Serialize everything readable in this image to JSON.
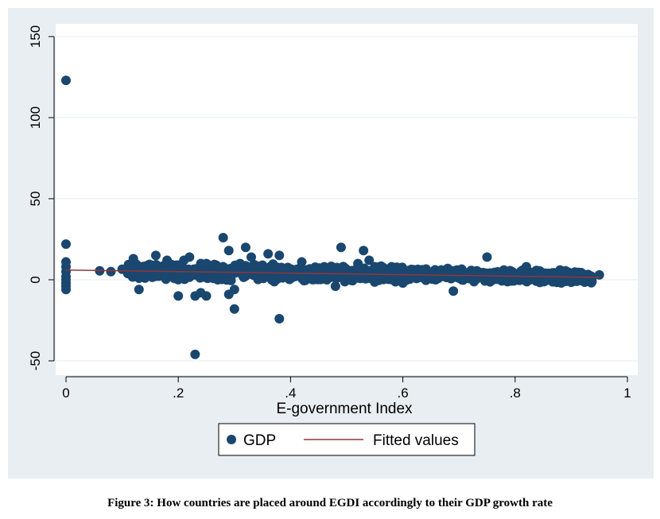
{
  "colors": {
    "panel_background": "#e8eef1",
    "plot_background": "#ffffff",
    "grid": "#e6ebee",
    "marker": "#1a476f",
    "fit_line": "#90353b",
    "legend_border": "#000000"
  },
  "caption": "Figure 3: How countries are placed around EGDI accordingly to their GDP growth rate",
  "chart_data": {
    "type": "scatter",
    "xlabel": "E-government Index",
    "ylabel": "",
    "xlim": [
      -0.02,
      1
    ],
    "ylim": [
      -55,
      155
    ],
    "x_ticks": [
      0,
      0.2,
      0.4,
      0.6,
      0.8,
      1
    ],
    "x_tick_labels": [
      "0",
      ".2",
      ".4",
      ".6",
      ".8",
      "1"
    ],
    "y_ticks": [
      -50,
      0,
      50,
      100,
      150
    ],
    "y_tick_labels": [
      "-50",
      "0",
      "50",
      "100",
      "150"
    ],
    "grid": true,
    "legend": {
      "placement": "bottom",
      "entries": [
        "GDP",
        "Fitted values"
      ]
    },
    "series": [
      {
        "name": "GDP",
        "kind": "scatter",
        "points": [
          [
            0,
            123
          ],
          [
            0,
            22
          ],
          [
            0,
            11
          ],
          [
            0,
            8
          ],
          [
            0,
            5
          ],
          [
            0,
            2
          ],
          [
            0,
            0
          ],
          [
            0,
            -2
          ],
          [
            0,
            -4
          ],
          [
            0,
            -6
          ],
          [
            0.06,
            5.5
          ],
          [
            0.08,
            5
          ],
          [
            0.1,
            6.5
          ],
          [
            0.11,
            4
          ],
          [
            0.12,
            11
          ],
          [
            0.12,
            13
          ],
          [
            0.13,
            -6
          ],
          [
            0.13,
            1
          ],
          [
            0.15,
            6
          ],
          [
            0.16,
            15
          ],
          [
            0.18,
            12
          ],
          [
            0.19,
            2
          ],
          [
            0.2,
            9
          ],
          [
            0.2,
            -10
          ],
          [
            0.21,
            12
          ],
          [
            0.22,
            14
          ],
          [
            0.22,
            4
          ],
          [
            0.23,
            -46
          ],
          [
            0.23,
            -10
          ],
          [
            0.24,
            -8
          ],
          [
            0.25,
            10
          ],
          [
            0.25,
            -10
          ],
          [
            0.26,
            6
          ],
          [
            0.28,
            26
          ],
          [
            0.28,
            8
          ],
          [
            0.29,
            18
          ],
          [
            0.29,
            -9
          ],
          [
            0.3,
            -18
          ],
          [
            0.3,
            -6
          ],
          [
            0.31,
            10
          ],
          [
            0.32,
            20
          ],
          [
            0.33,
            14
          ],
          [
            0.34,
            2
          ],
          [
            0.35,
            9
          ],
          [
            0.36,
            16
          ],
          [
            0.37,
            4
          ],
          [
            0.38,
            -24
          ],
          [
            0.38,
            15
          ],
          [
            0.4,
            6
          ],
          [
            0.42,
            11
          ],
          [
            0.44,
            2
          ],
          [
            0.46,
            8
          ],
          [
            0.48,
            -4
          ],
          [
            0.49,
            20
          ],
          [
            0.5,
            5
          ],
          [
            0.52,
            10
          ],
          [
            0.53,
            18
          ],
          [
            0.54,
            12
          ],
          [
            0.56,
            3
          ],
          [
            0.58,
            8
          ],
          [
            0.6,
            -2
          ],
          [
            0.62,
            6
          ],
          [
            0.64,
            4
          ],
          [
            0.66,
            2
          ],
          [
            0.68,
            7
          ],
          [
            0.69,
            -7
          ],
          [
            0.7,
            3
          ],
          [
            0.72,
            5
          ],
          [
            0.74,
            2
          ],
          [
            0.75,
            14
          ],
          [
            0.76,
            4
          ],
          [
            0.78,
            6
          ],
          [
            0.8,
            3
          ],
          [
            0.82,
            8
          ],
          [
            0.84,
            2
          ],
          [
            0.86,
            4
          ],
          [
            0.88,
            6
          ],
          [
            0.9,
            2
          ],
          [
            0.92,
            3
          ],
          [
            0.95,
            3
          ]
        ]
      },
      {
        "name": "Fitted values",
        "kind": "line",
        "x": [
          0,
          0.95
        ],
        "y": [
          6,
          1.5
        ]
      }
    ]
  }
}
